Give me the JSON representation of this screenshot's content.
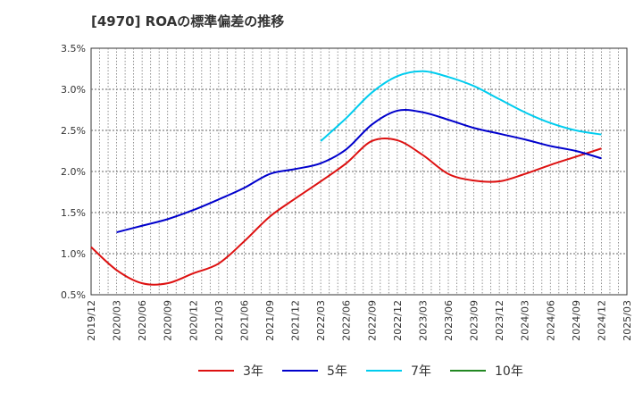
{
  "title": "[4970]  ROAの標準偏差の推移",
  "chart_data": {
    "type": "line",
    "x": [
      "2019/12",
      "2020/03",
      "2020/06",
      "2020/09",
      "2020/12",
      "2021/03",
      "2021/06",
      "2021/09",
      "2021/12",
      "2022/03",
      "2022/06",
      "2022/09",
      "2022/12",
      "2023/03",
      "2023/06",
      "2023/09",
      "2023/12",
      "2024/03",
      "2024/06",
      "2024/09",
      "2024/12",
      "2025/03"
    ],
    "ylim": [
      0.5,
      3.5
    ],
    "yticks": [
      "0.5%",
      "1.0%",
      "1.5%",
      "2.0%",
      "2.5%",
      "3.0%",
      "3.5%"
    ],
    "grid": true,
    "legend_position": "bottom",
    "series": [
      {
        "name": "3年",
        "color": "#dd1111",
        "values": [
          1.08,
          0.8,
          0.64,
          0.64,
          0.76,
          0.88,
          1.15,
          1.45,
          1.67,
          1.88,
          2.1,
          2.37,
          2.38,
          2.2,
          1.97,
          1.89,
          1.88,
          1.97,
          2.08,
          2.18,
          2.28,
          null
        ]
      },
      {
        "name": "5年",
        "color": "#0000cc",
        "values": [
          null,
          1.26,
          1.34,
          1.42,
          1.53,
          1.66,
          1.8,
          1.97,
          2.03,
          2.1,
          2.27,
          2.57,
          2.74,
          2.72,
          2.63,
          2.53,
          2.46,
          2.39,
          2.31,
          2.25,
          2.16,
          null
        ]
      },
      {
        "name": "7年",
        "color": "#00ccee",
        "values": [
          null,
          null,
          null,
          null,
          null,
          null,
          null,
          null,
          null,
          2.37,
          2.65,
          2.96,
          3.16,
          3.22,
          3.15,
          3.04,
          2.88,
          2.72,
          2.59,
          2.5,
          2.45,
          null
        ]
      },
      {
        "name": "10年",
        "color": "#228822",
        "values": [
          null,
          null,
          null,
          null,
          null,
          null,
          null,
          null,
          null,
          null,
          null,
          null,
          null,
          null,
          null,
          null,
          null,
          null,
          null,
          null,
          null,
          null
        ]
      }
    ]
  }
}
